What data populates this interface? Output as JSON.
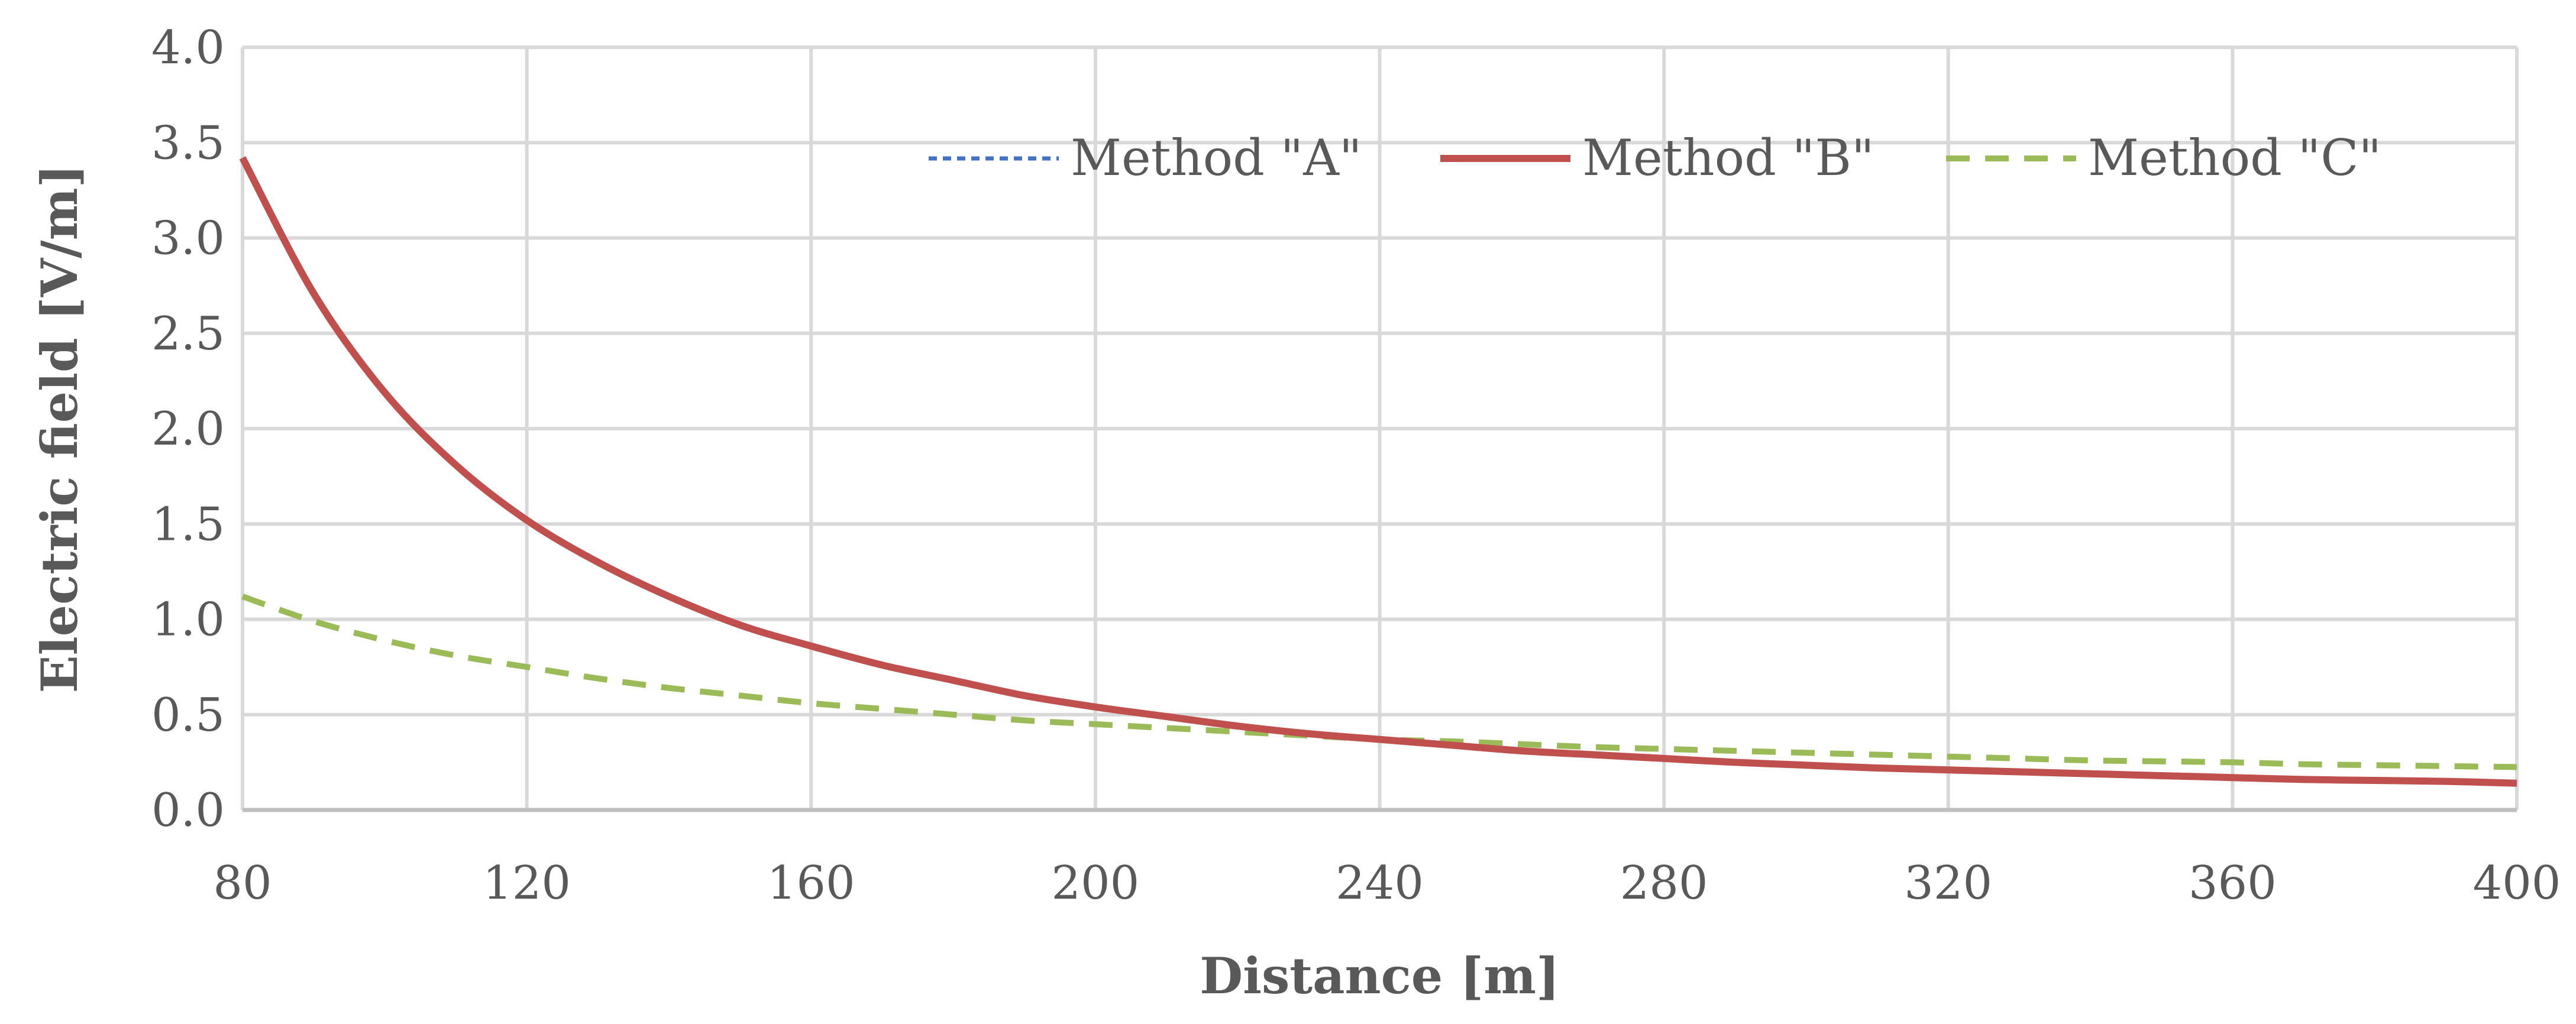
{
  "chart_data": {
    "type": "line",
    "title": "",
    "xlabel": "Distance [m]",
    "ylabel": "Electric field [V/m]",
    "xlim": [
      80,
      400
    ],
    "ylim": [
      0.0,
      4.0
    ],
    "x_ticks": [
      "80",
      "120",
      "160",
      "200",
      "240",
      "280",
      "320",
      "360",
      "400"
    ],
    "y_ticks": [
      "0.0",
      "0.5",
      "1.0",
      "1.5",
      "2.0",
      "2.5",
      "3.0",
      "3.5",
      "4.0"
    ],
    "grid": true,
    "legend_position": "top-center",
    "x": [
      80,
      90,
      100,
      110,
      120,
      130,
      140,
      150,
      160,
      170,
      180,
      190,
      200,
      210,
      220,
      230,
      240,
      250,
      260,
      270,
      280,
      290,
      300,
      310,
      320,
      330,
      340,
      350,
      360,
      370,
      380,
      390,
      400
    ],
    "series": [
      {
        "name": "Method \"A\"",
        "style": "dotted",
        "color": "#4472C4",
        "values": [
          3.42,
          2.71,
          2.19,
          1.81,
          1.52,
          1.3,
          1.12,
          0.97,
          0.86,
          0.76,
          0.68,
          0.6,
          0.54,
          0.49,
          0.44,
          0.4,
          0.37,
          0.34,
          0.31,
          0.29,
          0.27,
          0.25,
          0.235,
          0.22,
          0.21,
          0.2,
          0.19,
          0.18,
          0.17,
          0.16,
          0.155,
          0.15,
          0.14
        ]
      },
      {
        "name": "Method \"B\"",
        "style": "solid",
        "color": "#C0504D",
        "values": [
          3.42,
          2.71,
          2.19,
          1.81,
          1.52,
          1.3,
          1.12,
          0.97,
          0.86,
          0.76,
          0.68,
          0.6,
          0.54,
          0.49,
          0.44,
          0.4,
          0.37,
          0.34,
          0.31,
          0.29,
          0.27,
          0.25,
          0.235,
          0.22,
          0.21,
          0.2,
          0.19,
          0.18,
          0.17,
          0.16,
          0.155,
          0.15,
          0.14
        ]
      },
      {
        "name": "Method \"C\"",
        "style": "dashed",
        "color": "#9BBB59",
        "values": [
          1.12,
          0.99,
          0.89,
          0.81,
          0.75,
          0.69,
          0.64,
          0.6,
          0.56,
          0.53,
          0.5,
          0.47,
          0.45,
          0.43,
          0.41,
          0.39,
          0.37,
          0.36,
          0.345,
          0.33,
          0.32,
          0.31,
          0.3,
          0.29,
          0.28,
          0.27,
          0.26,
          0.255,
          0.25,
          0.24,
          0.235,
          0.23,
          0.225
        ]
      }
    ]
  }
}
